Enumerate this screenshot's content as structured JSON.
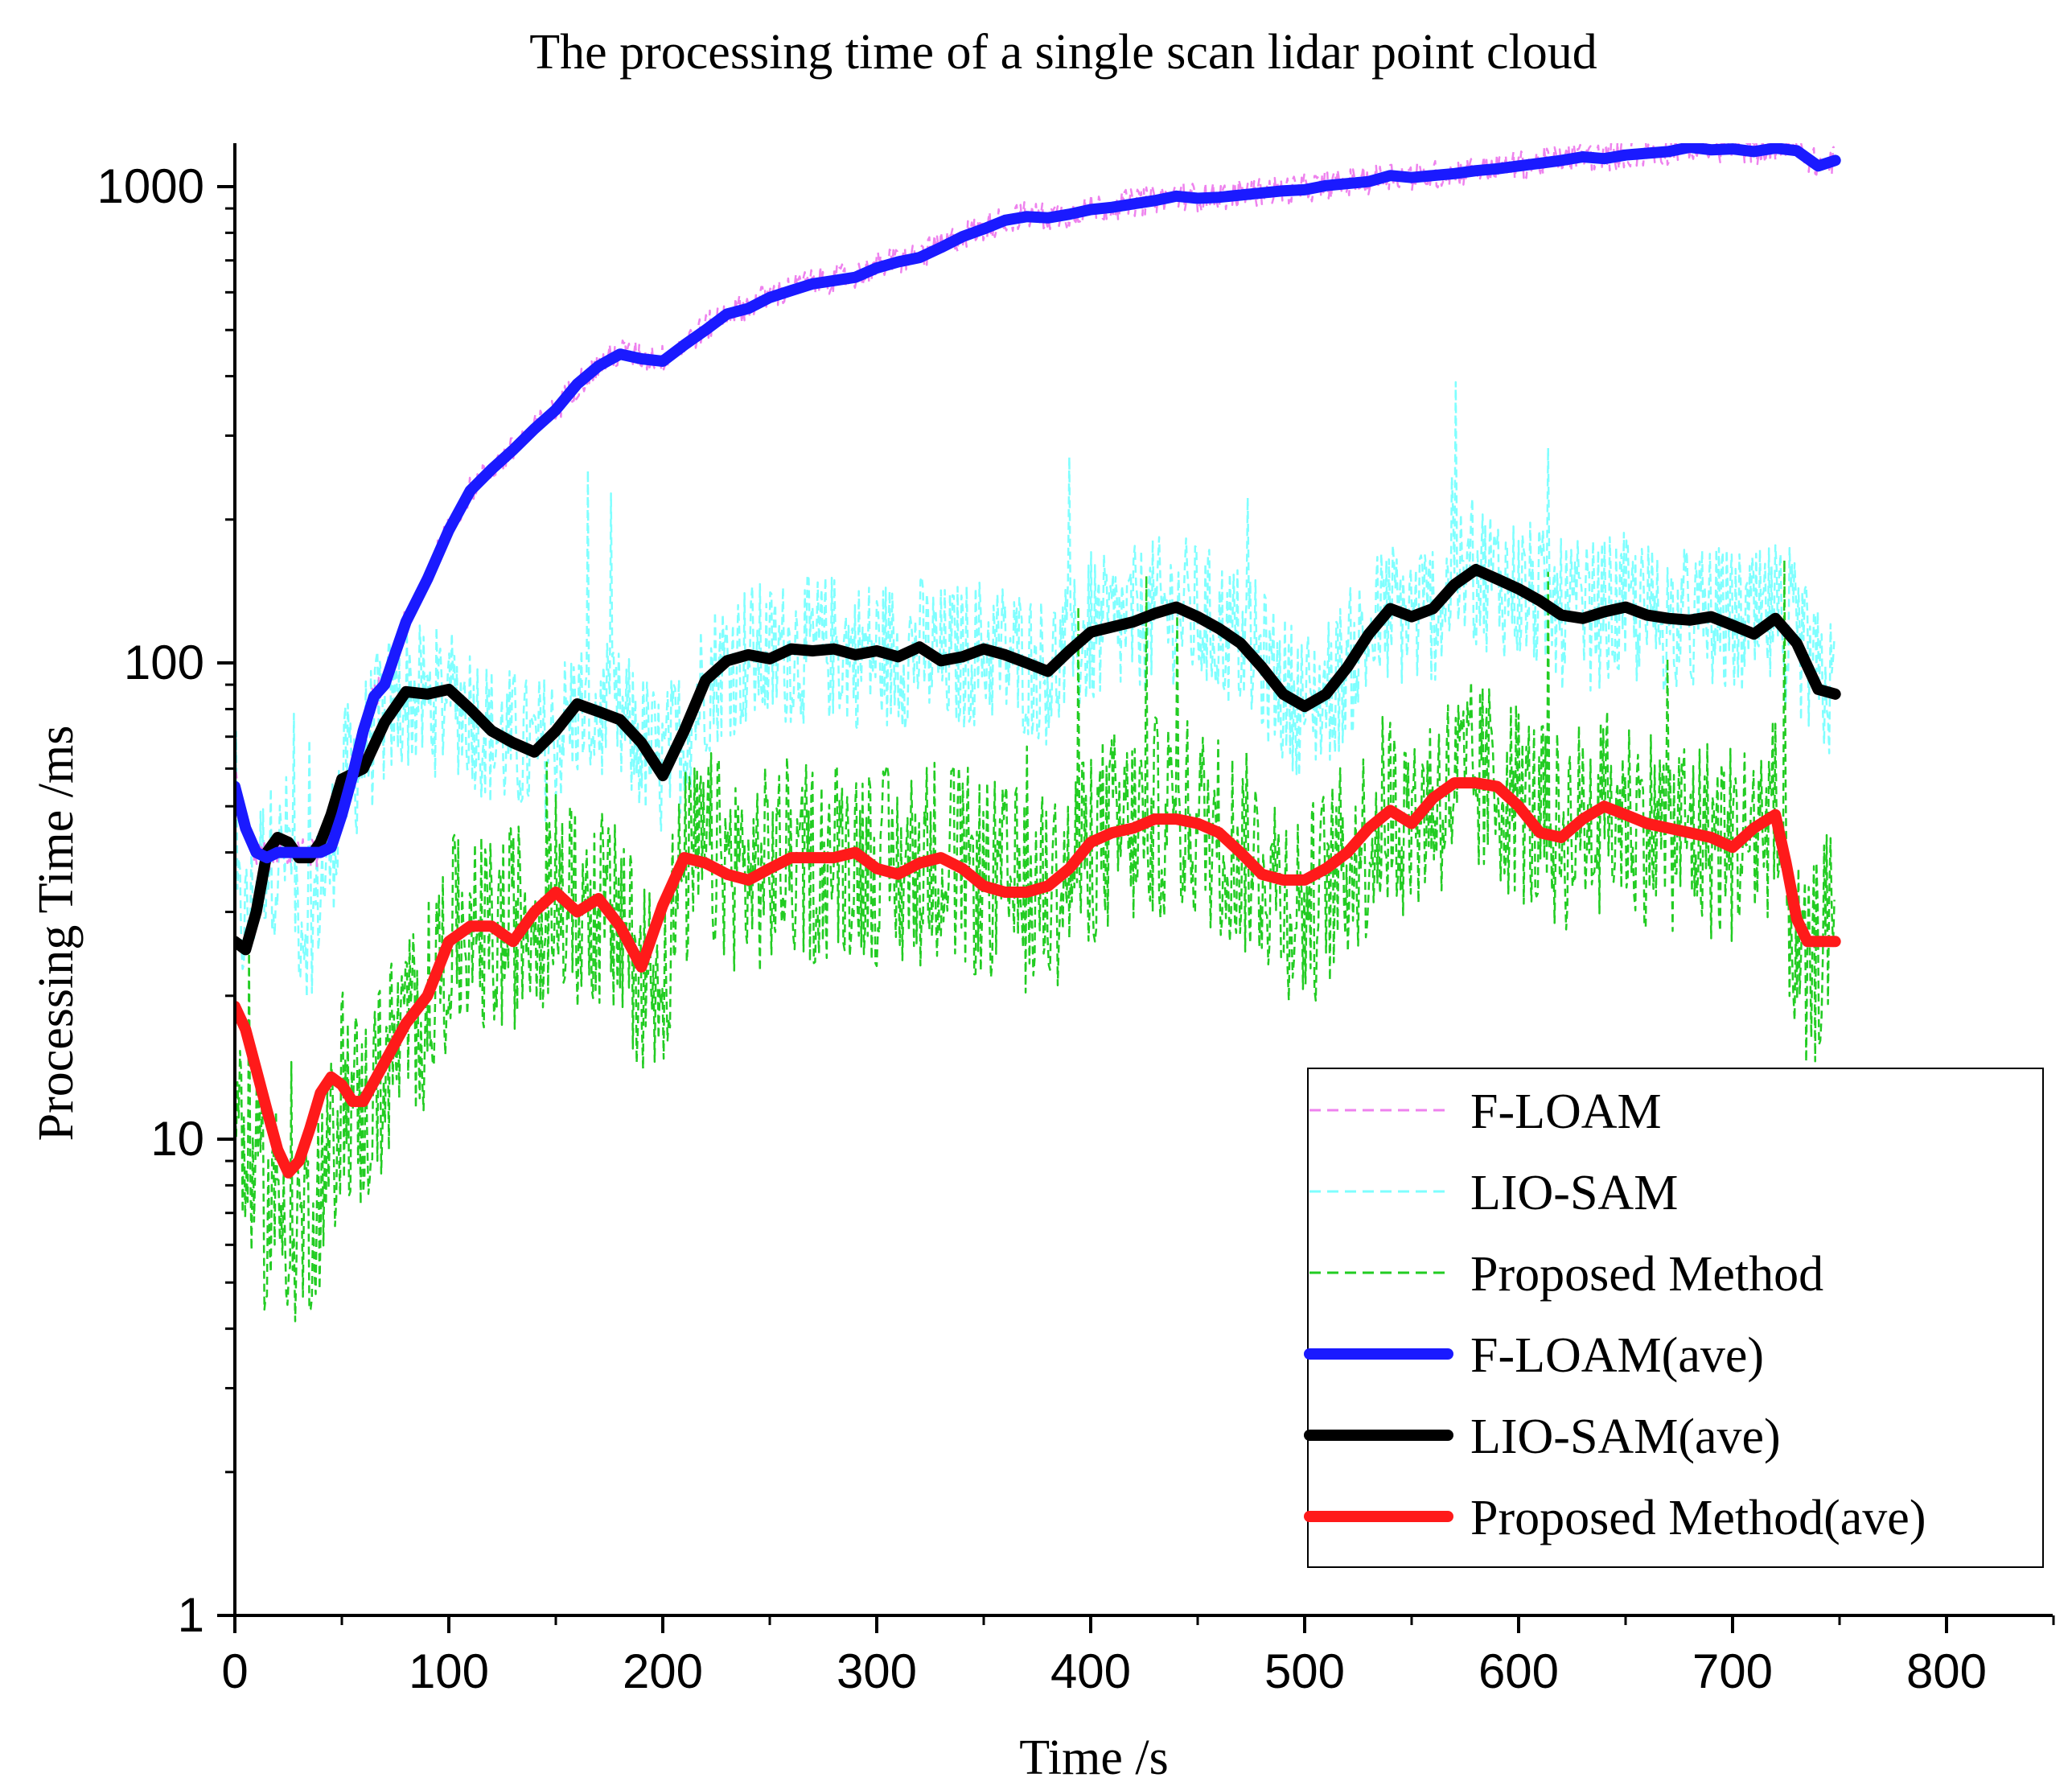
{
  "chart_data": {
    "type": "line",
    "title": "The processing time of a single scan lidar point cloud",
    "xlabel": "Time /s",
    "ylabel": "Processing Time /ms",
    "xlim": [
      0,
      850
    ],
    "ylim": [
      1,
      1300
    ],
    "yscale": "log",
    "grid": false,
    "legend_position": "bottom-right",
    "x_ticks": [
      "0",
      "100",
      "200",
      "300",
      "400",
      "500",
      "600",
      "700",
      "800"
    ],
    "y_ticks": [
      "1",
      "10",
      "100",
      "1000"
    ],
    "series": [
      {
        "name": "F-LOAM",
        "style": "dashed",
        "color": "#ee82ee",
        "x": [
          0,
          5,
          10,
          15,
          20,
          25,
          30,
          35,
          40,
          45,
          50,
          55,
          60,
          65,
          70,
          75,
          80,
          90,
          100,
          110,
          120,
          130,
          140,
          150,
          160,
          170,
          180,
          190,
          200,
          210,
          220,
          230,
          240,
          250,
          260,
          270,
          280,
          290,
          300,
          310,
          320,
          330,
          340,
          350,
          360,
          370,
          380,
          390,
          400,
          410,
          420,
          430,
          440,
          450,
          460,
          470,
          480,
          490,
          500,
          510,
          520,
          530,
          540,
          550,
          560,
          570,
          580,
          590,
          600,
          610,
          620,
          630,
          640,
          650,
          660,
          670,
          680,
          690,
          700,
          710,
          720,
          730,
          740,
          748
        ],
        "values": [
          58,
          45,
          40,
          39,
          40,
          40,
          40,
          40,
          40,
          41,
          48,
          58,
          72,
          85,
          90,
          105,
          122,
          150,
          190,
          230,
          255,
          280,
          310,
          340,
          385,
          420,
          450,
          440,
          435,
          470,
          505,
          545,
          560,
          590,
          610,
          630,
          640,
          650,
          680,
          700,
          715,
          750,
          790,
          820,
          855,
          870,
          865,
          880,
          900,
          910,
          925,
          940,
          960,
          950,
          955,
          965,
          975,
          985,
          990,
          1010,
          1020,
          1030,
          1060,
          1050,
          1060,
          1070,
          1085,
          1095,
          1110,
          1125,
          1140,
          1160,
          1150,
          1170,
          1180,
          1190,
          1215,
          1200,
          1205,
          1190,
          1210,
          1195,
          1110,
          1140
        ]
      },
      {
        "name": "LIO-SAM",
        "style": "dashed",
        "color": "#7fffff",
        "x": [
          0,
          5,
          10,
          15,
          20,
          25,
          30,
          35,
          40,
          45,
          50,
          60,
          70,
          80,
          90,
          100,
          110,
          120,
          130,
          140,
          150,
          160,
          170,
          180,
          190,
          200,
          210,
          220,
          230,
          240,
          250,
          260,
          270,
          280,
          290,
          300,
          310,
          320,
          330,
          340,
          350,
          360,
          370,
          380,
          390,
          400,
          410,
          420,
          430,
          440,
          450,
          460,
          470,
          480,
          490,
          500,
          510,
          520,
          530,
          540,
          550,
          560,
          570,
          580,
          590,
          600,
          610,
          620,
          630,
          640,
          650,
          660,
          670,
          680,
          690,
          700,
          710,
          720,
          730,
          740,
          748
        ],
        "values": [
          30,
          28,
          35,
          40,
          38,
          42,
          30,
          28,
          34,
          40,
          55,
          65,
          78,
          86,
          82,
          85,
          80,
          70,
          68,
          64,
          70,
          80,
          78,
          74,
          68,
          60,
          72,
          92,
          100,
          104,
          102,
          107,
          106,
          108,
          104,
          106,
          103,
          108,
          101,
          103,
          107,
          104,
          100,
          96,
          105,
          115,
          118,
          122,
          127,
          130,
          125,
          118,
          112,
          100,
          88,
          82,
          86,
          98,
          115,
          128,
          125,
          130,
          145,
          155,
          150,
          142,
          135,
          126,
          125,
          128,
          130,
          125,
          124,
          122,
          124,
          120,
          118,
          125,
          112,
          90,
          86
        ]
      },
      {
        "name": "Proposed Method",
        "style": "dashed",
        "color": "#22cc22",
        "x": [
          0,
          5,
          10,
          15,
          20,
          25,
          30,
          35,
          40,
          45,
          50,
          55,
          60,
          70,
          80,
          90,
          100,
          110,
          120,
          130,
          140,
          150,
          160,
          170,
          180,
          190,
          200,
          210,
          220,
          230,
          240,
          250,
          260,
          270,
          280,
          290,
          300,
          310,
          320,
          330,
          340,
          350,
          360,
          370,
          380,
          390,
          400,
          410,
          420,
          430,
          440,
          450,
          460,
          470,
          480,
          490,
          500,
          510,
          520,
          530,
          540,
          550,
          560,
          570,
          580,
          590,
          600,
          610,
          620,
          630,
          640,
          650,
          660,
          670,
          680,
          690,
          700,
          710,
          720,
          725,
          730,
          735,
          740,
          748
        ],
        "values": [
          12,
          9,
          8,
          7,
          7.5,
          7,
          6.5,
          7,
          8,
          9,
          13,
          12,
          11,
          14,
          17,
          19,
          26,
          27,
          26,
          28,
          30,
          33,
          30,
          31,
          27,
          23,
          22,
          36,
          40,
          38,
          36,
          37,
          39,
          38,
          39,
          40,
          38,
          36,
          38,
          40,
          37,
          35,
          34,
          33,
          33,
          36,
          42,
          44,
          45,
          47,
          48,
          46,
          44,
          40,
          38,
          33,
          30,
          34,
          38,
          43,
          50,
          47,
          52,
          55,
          56,
          55,
          52,
          46,
          44,
          47,
          49,
          48,
          46,
          45,
          44,
          43,
          42,
          44,
          48,
          35,
          24,
          20,
          25,
          28
        ]
      },
      {
        "name": "F-LOAM(ave)",
        "style": "solid",
        "color": "#1a1aff",
        "x": [
          0,
          5,
          10,
          15,
          20,
          25,
          30,
          35,
          40,
          45,
          50,
          55,
          60,
          65,
          70,
          75,
          80,
          90,
          100,
          110,
          120,
          130,
          140,
          150,
          160,
          170,
          180,
          190,
          200,
          210,
          220,
          230,
          240,
          250,
          260,
          270,
          280,
          290,
          300,
          310,
          320,
          330,
          340,
          350,
          360,
          370,
          380,
          390,
          400,
          410,
          420,
          430,
          440,
          450,
          460,
          470,
          480,
          490,
          500,
          510,
          520,
          530,
          540,
          550,
          560,
          570,
          580,
          590,
          600,
          610,
          620,
          630,
          640,
          650,
          660,
          670,
          680,
          690,
          700,
          710,
          720,
          730,
          740,
          748
        ],
        "values": [
          55,
          45,
          40,
          39,
          40,
          40,
          40,
          40,
          40,
          41,
          48,
          58,
          72,
          85,
          90,
          105,
          122,
          150,
          190,
          230,
          255,
          280,
          310,
          340,
          385,
          420,
          445,
          435,
          430,
          465,
          500,
          540,
          555,
          585,
          605,
          625,
          635,
          645,
          675,
          695,
          710,
          745,
          785,
          815,
          850,
          865,
          860,
          875,
          895,
          905,
          920,
          935,
          955,
          945,
          950,
          960,
          970,
          980,
          985,
          1005,
          1015,
          1025,
          1055,
          1045,
          1055,
          1065,
          1080,
          1090,
          1105,
          1120,
          1135,
          1155,
          1145,
          1165,
          1175,
          1185,
          1210,
          1195,
          1200,
          1185,
          1205,
          1190,
          1105,
          1135
        ]
      },
      {
        "name": "LIO-SAM(ave)",
        "style": "solid",
        "color": "#000000",
        "x": [
          0,
          5,
          10,
          15,
          20,
          25,
          30,
          35,
          40,
          45,
          50,
          60,
          70,
          80,
          90,
          100,
          110,
          120,
          130,
          140,
          150,
          160,
          170,
          180,
          190,
          200,
          210,
          220,
          230,
          240,
          250,
          260,
          270,
          280,
          290,
          300,
          310,
          320,
          330,
          340,
          350,
          360,
          370,
          380,
          390,
          400,
          410,
          420,
          430,
          440,
          450,
          460,
          470,
          480,
          490,
          500,
          510,
          520,
          530,
          540,
          550,
          560,
          570,
          580,
          590,
          600,
          610,
          620,
          630,
          640,
          650,
          660,
          670,
          680,
          690,
          700,
          710,
          720,
          730,
          740,
          748
        ],
        "values": [
          26,
          25,
          30,
          40,
          43,
          42,
          39,
          39,
          42,
          48,
          57,
          60,
          75,
          87,
          86,
          88,
          80,
          72,
          68,
          65,
          72,
          82,
          79,
          76,
          68,
          58,
          72,
          92,
          101,
          104,
          102,
          107,
          106,
          107,
          104,
          106,
          103,
          108,
          101,
          103,
          107,
          104,
          100,
          96,
          106,
          116,
          119,
          122,
          127,
          131,
          125,
          118,
          110,
          98,
          86,
          81,
          86,
          98,
          115,
          130,
          125,
          130,
          146,
          157,
          150,
          143,
          135,
          126,
          124,
          128,
          131,
          126,
          124,
          123,
          125,
          120,
          115,
          124,
          110,
          88,
          86
        ]
      },
      {
        "name": "Proposed Method(ave)",
        "style": "solid",
        "color": "#ff1a1a",
        "x": [
          0,
          5,
          10,
          15,
          20,
          25,
          30,
          35,
          40,
          45,
          50,
          55,
          60,
          70,
          80,
          90,
          100,
          110,
          120,
          130,
          140,
          150,
          160,
          170,
          180,
          190,
          200,
          210,
          220,
          230,
          240,
          250,
          260,
          270,
          280,
          290,
          300,
          310,
          320,
          330,
          340,
          350,
          360,
          370,
          380,
          390,
          400,
          410,
          420,
          430,
          440,
          450,
          460,
          470,
          480,
          490,
          500,
          510,
          520,
          530,
          540,
          550,
          560,
          570,
          580,
          590,
          600,
          610,
          620,
          630,
          640,
          650,
          660,
          670,
          680,
          690,
          700,
          710,
          720,
          725,
          730,
          735,
          740,
          748
        ],
        "values": [
          19,
          17,
          14,
          11.5,
          9.5,
          8.5,
          9.0,
          10.5,
          12.5,
          13.5,
          13,
          12,
          12,
          14.5,
          17.5,
          20,
          26,
          28,
          28,
          26,
          30,
          33,
          30,
          32,
          28,
          23,
          31,
          39,
          38,
          36,
          35,
          37,
          39,
          39,
          39,
          40,
          37,
          36,
          38,
          39,
          37,
          34,
          33,
          33,
          34,
          37,
          42,
          44,
          45,
          47,
          47,
          46,
          44,
          40,
          36,
          35,
          35,
          37,
          40,
          45,
          49,
          46,
          52,
          56,
          56,
          55,
          50,
          44,
          43,
          47,
          50,
          48,
          46,
          45,
          44,
          43,
          41,
          45,
          48,
          38,
          29,
          26,
          26,
          26
        ]
      }
    ]
  }
}
